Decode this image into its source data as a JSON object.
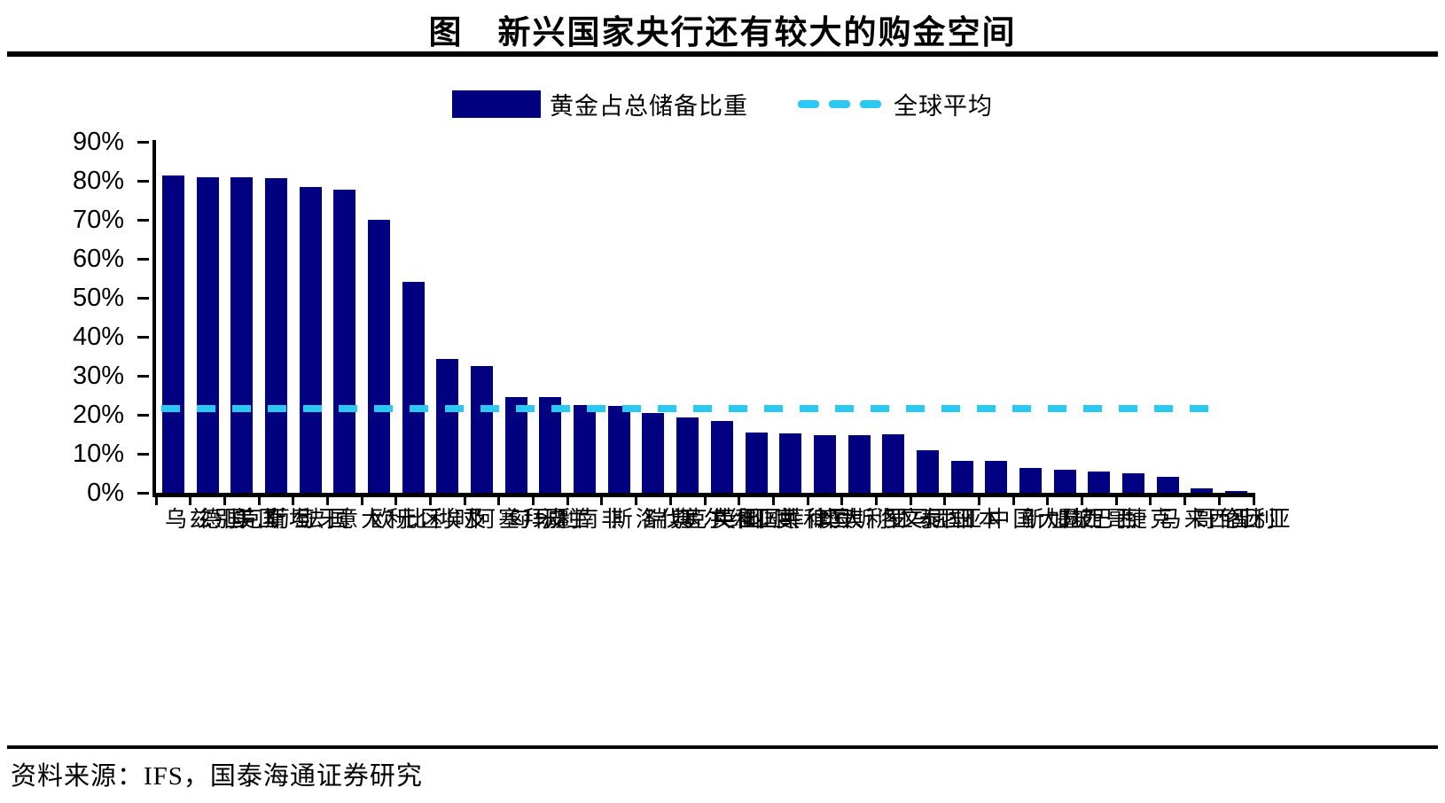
{
  "title": "图　新兴国家央行还有较大的购金空间",
  "source": "资料来源：IFS，国泰海通证券研究",
  "legend": {
    "bar_series_label": "黄金占总储备比重",
    "average_line_label": "全球平均"
  },
  "colors": {
    "bar": "#000080",
    "average_line": "#2BC8F2",
    "axis": "#000000"
  },
  "chart_data": {
    "type": "bar",
    "title": "新兴国家央行还有较大的购金空间",
    "xlabel": "",
    "ylabel": "",
    "ylim": [
      0,
      90
    ],
    "grid": false,
    "legend_position": "top-center",
    "y_ticks": [
      "90%",
      "80%",
      "70%",
      "60%",
      "50%",
      "40%",
      "30%",
      "20%",
      "10%",
      "0%"
    ],
    "categories": [
      "乌兹别克斯坦",
      "德国",
      "美国",
      "葡萄牙",
      "法国",
      "意大利",
      "欧元区",
      "比利时",
      "埃及",
      "阿塞拜疆",
      "匈牙利",
      "波兰",
      "南非",
      "斯洛伐克共和国",
      "瑞典",
      "塞尔维亚共和国",
      "英国",
      "印度",
      "菲律宾",
      "澳大利亚",
      "斯洛文尼亚",
      "罗马尼亚",
      "泰国",
      "日本",
      "中国大陆",
      "新加坡",
      "墨西哥",
      "巴西",
      "捷克",
      "马来西亚",
      "哥伦比亚",
      "智利"
    ],
    "series": [
      {
        "name": "黄金占总储备比重",
        "values": [
          81.3,
          81.0,
          81.0,
          80.7,
          78.3,
          77.7,
          69.9,
          54.0,
          34.3,
          32.5,
          24.6,
          24.6,
          22.5,
          22.2,
          20.5,
          19.3,
          18.5,
          15.4,
          15.2,
          14.8,
          14.8,
          14.9,
          11.0,
          8.1,
          8.1,
          6.4,
          6.0,
          5.4,
          5.1,
          4.1,
          1.2,
          0.5
        ]
      }
    ],
    "average_line": {
      "label": "全球平均",
      "value": 21.5
    }
  }
}
